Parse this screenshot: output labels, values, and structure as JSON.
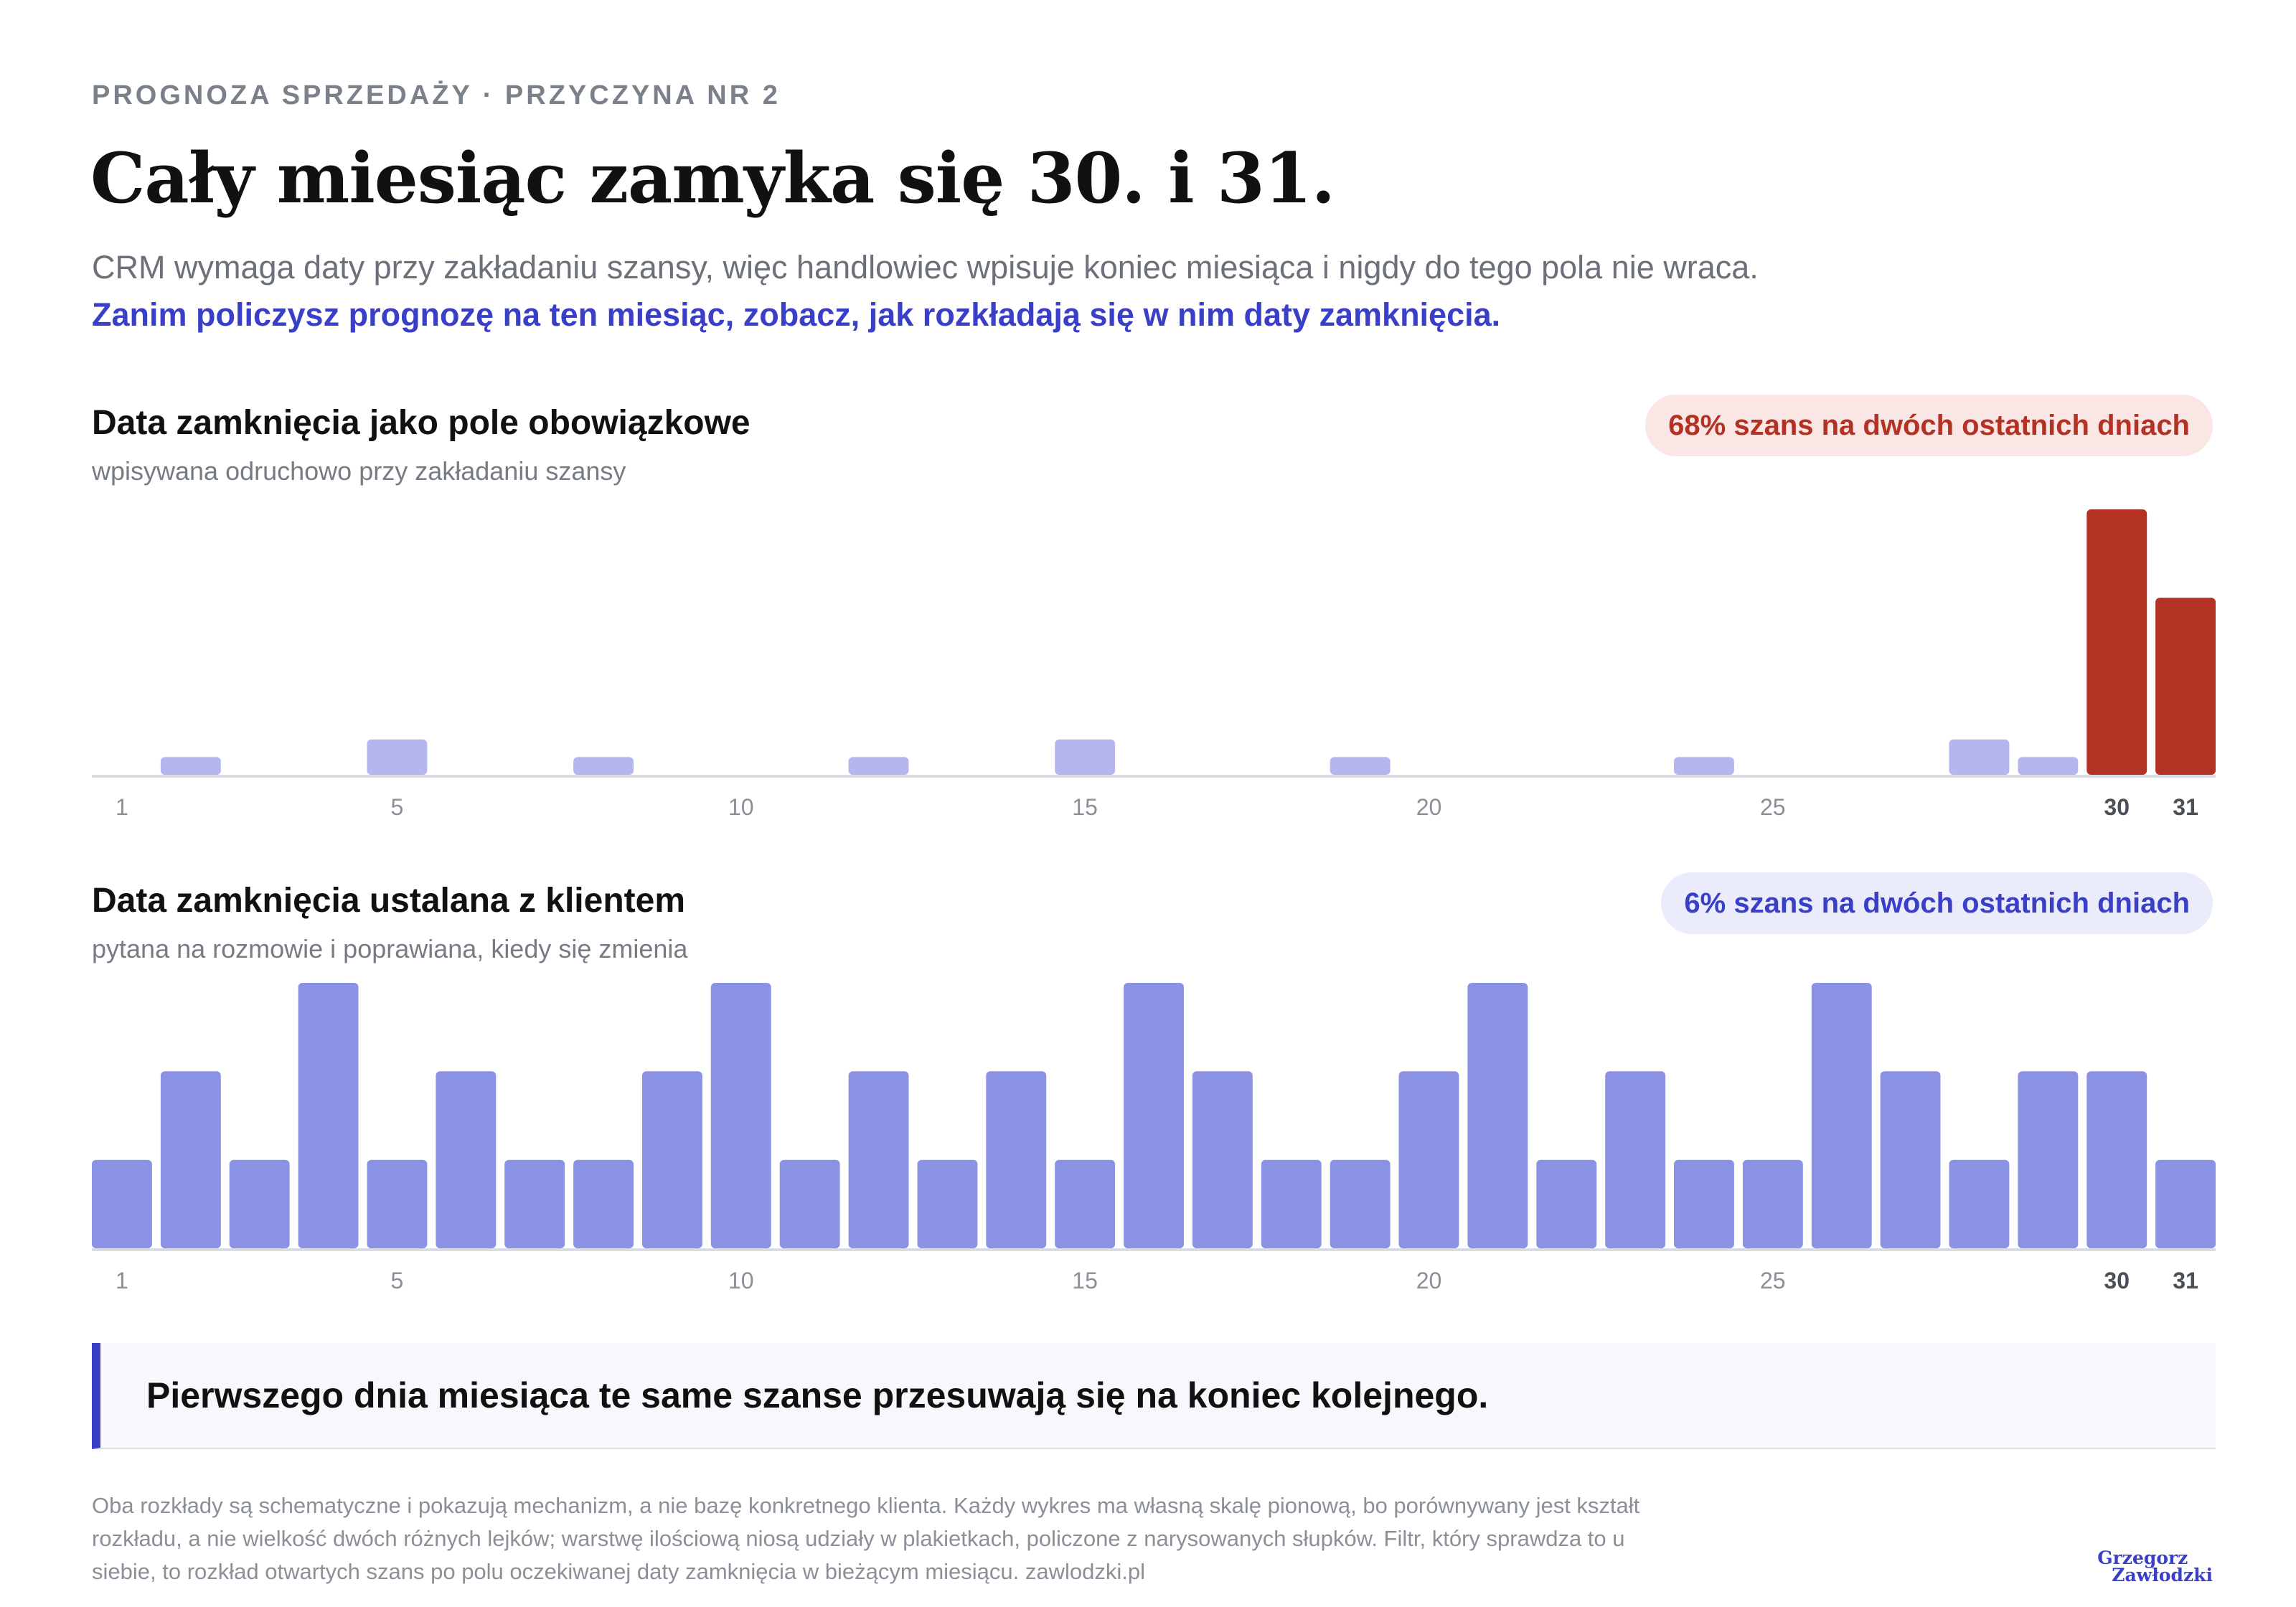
{
  "header": {
    "kicker": "PROGNOZA SPRZEDAŻY · PRZYCZYNA NR 2",
    "title": "Cały miesiąc zamyka się 30. i 31.",
    "subtitle_plain": "CRM wymaga daty przy zakładaniu szansy, więc handlowiec wpisuje koniec miesiąca i nigdy do tego pola nie wraca. ",
    "subtitle_highlight": "Zanim policzysz prognozę na ten miesiąc, zobacz, jak rozkładają się w nim daty zamknięcia."
  },
  "colors": {
    "accent_blue": "#3a3fc8",
    "accent_red": "#b33224",
    "bar_light": "#b3b7ee",
    "bar_blue": "#8b91e3",
    "bar_red": "#b33224"
  },
  "chart_data": [
    {
      "type": "bar",
      "title": "Data zamknięcia jako pole obowiązkowe",
      "subtitle": "wpisywana odruchowo przy zakładaniu szansy",
      "badge": "68% szans na dwóch ostatnich dniach",
      "categories": [
        1,
        2,
        3,
        4,
        5,
        6,
        7,
        8,
        9,
        10,
        11,
        12,
        13,
        14,
        15,
        16,
        17,
        18,
        19,
        20,
        21,
        22,
        23,
        24,
        25,
        26,
        27,
        28,
        29,
        30,
        31
      ],
      "values": [
        0,
        1,
        0,
        0,
        2,
        0,
        0,
        1,
        0,
        0,
        0,
        1,
        0,
        0,
        2,
        0,
        0,
        0,
        1,
        0,
        0,
        0,
        0,
        1,
        0,
        0,
        0,
        2,
        1,
        15,
        10
      ],
      "highlight_days": [
        30,
        31
      ],
      "tick_labels": [
        "1",
        "5",
        "10",
        "15",
        "20",
        "25",
        "30",
        "31"
      ],
      "ylim": [
        0,
        15
      ]
    },
    {
      "type": "bar",
      "title": "Data zamknięcia ustalana z klientem",
      "subtitle": "pytana na rozmowie i poprawiana, kiedy się zmienia",
      "badge": "6% szans na dwóch ostatnich dniach",
      "categories": [
        1,
        2,
        3,
        4,
        5,
        6,
        7,
        8,
        9,
        10,
        11,
        12,
        13,
        14,
        15,
        16,
        17,
        18,
        19,
        20,
        21,
        22,
        23,
        24,
        25,
        26,
        27,
        28,
        29,
        30,
        31
      ],
      "values": [
        1,
        2,
        1,
        3,
        1,
        2,
        1,
        1,
        2,
        3,
        1,
        2,
        1,
        2,
        1,
        3,
        2,
        1,
        1,
        2,
        3,
        1,
        2,
        1,
        1,
        3,
        2,
        1,
        2,
        2,
        1
      ],
      "highlight_days": [
        30,
        31
      ],
      "tick_labels": [
        "1",
        "5",
        "10",
        "15",
        "20",
        "25",
        "30",
        "31"
      ],
      "ylim": [
        0,
        3
      ]
    }
  ],
  "callout": "Pierwszego dnia miesiąca te same szanse przesuwają się na koniec kolejnego.",
  "note": "Oba rozkłady są schematyczne i pokazują mechanizm, a nie bazę konkretnego klienta. Każdy wykres ma własną skalę pionową, bo porównywany jest kształt rozkładu, a nie wielkość dwóch różnych lejków; warstwę ilościową niosą udziały w plakietkach, policzone z narysowanych słupków. Filtr, który sprawdza to u siebie, to rozkład otwartych szans po polu oczekiwanej daty zamknięcia w bieżącym miesiącu. zawlodzki.pl",
  "signature": {
    "line1": "Grzegorz",
    "line2": "Zawłodzki"
  }
}
